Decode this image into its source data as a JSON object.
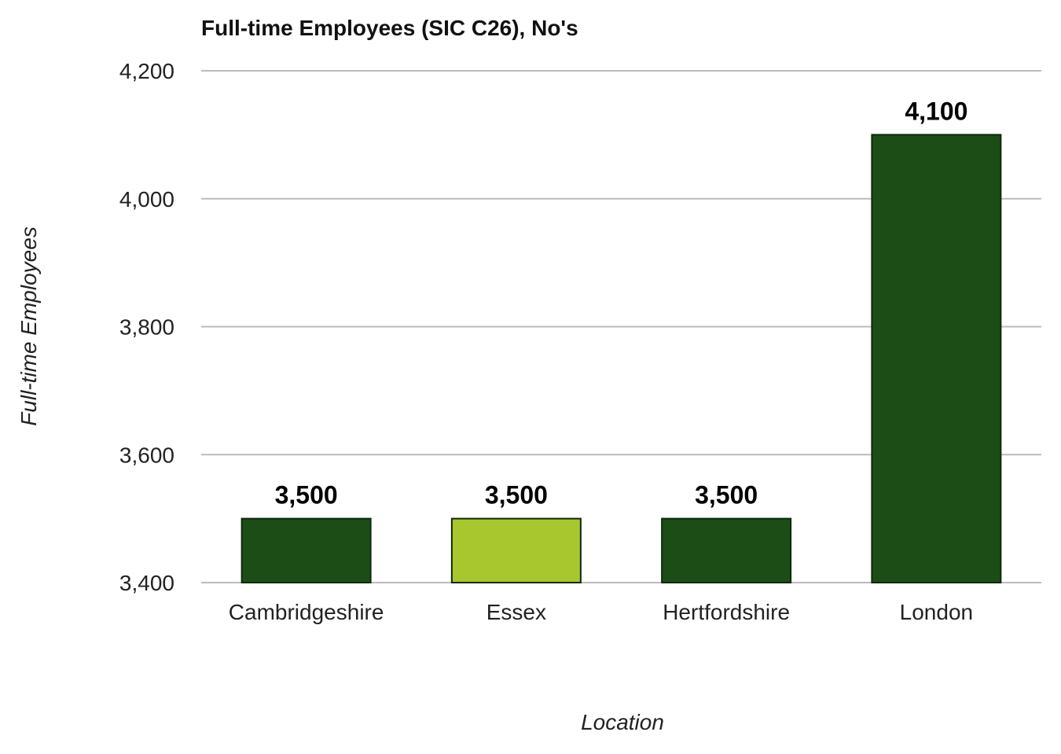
{
  "chart_data": {
    "type": "bar",
    "title": "Full-time Employees (SIC C26), No's",
    "xlabel": "Location",
    "ylabel": "Full-time Employees",
    "categories": [
      "Cambridgeshire",
      "Essex",
      "Hertfordshire",
      "London"
    ],
    "values": [
      3500,
      3500,
      3500,
      4100
    ],
    "data_labels": [
      "3,500",
      "3,500",
      "3,500",
      "4,100"
    ],
    "ylim": [
      3400,
      4200
    ],
    "yticks": [
      3400,
      3600,
      3800,
      4000,
      4200
    ],
    "ytick_labels": [
      "3,400",
      "3,600",
      "3,800",
      "4,000",
      "4,200"
    ],
    "bar_colors": [
      "#1d4d16",
      "#a8c62e",
      "#1d4d16",
      "#1d4d16"
    ],
    "grid": true,
    "legend": "none"
  }
}
